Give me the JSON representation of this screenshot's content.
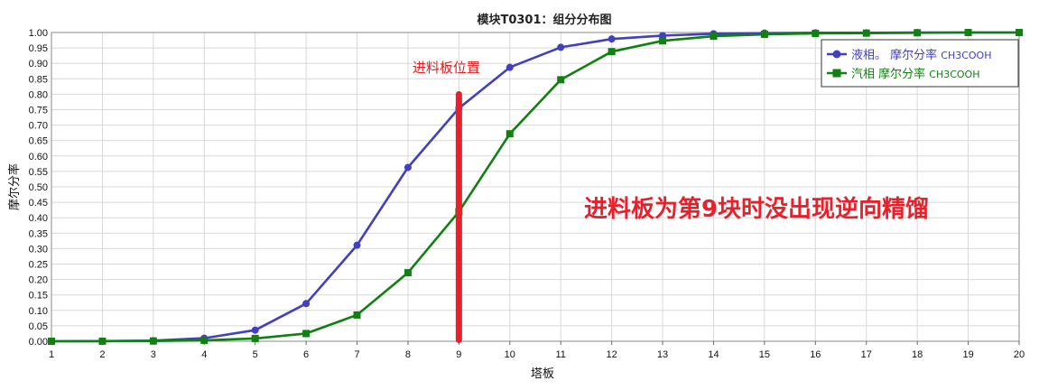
{
  "chart_data": {
    "type": "line",
    "title": "模块T0301：组分分布图",
    "xlabel": "塔板",
    "ylabel": "摩尔分率",
    "x": [
      1,
      2,
      3,
      4,
      5,
      6,
      7,
      8,
      9,
      10,
      11,
      12,
      13,
      14,
      15,
      16,
      17,
      18,
      19,
      20
    ],
    "xlim": [
      1,
      20
    ],
    "ylim": [
      0,
      1
    ],
    "y_ticks": [
      "0.00",
      "0.05",
      "0.10",
      "0.15",
      "0.20",
      "0.25",
      "0.30",
      "0.35",
      "0.40",
      "0.45",
      "0.50",
      "0.55",
      "0.60",
      "0.65",
      "0.70",
      "0.75",
      "0.80",
      "0.85",
      "0.90",
      "0.95",
      "1.00"
    ],
    "grid": true,
    "legend_position": "top-right",
    "series": [
      {
        "name": "液相。 摩尔分率",
        "component": "CH3COOH",
        "color": "#4040c0",
        "marker": "circle",
        "values": [
          0.0,
          0.0005,
          0.002,
          0.01,
          0.036,
          0.122,
          0.311,
          0.563,
          0.755,
          0.887,
          0.952,
          0.979,
          0.99,
          0.996,
          0.998,
          0.999,
          0.999,
          1.0,
          1.0,
          1.0
        ]
      },
      {
        "name": "汽相 摩尔分率",
        "component": "CH3COOH",
        "color": "#108010",
        "marker": "square",
        "values": [
          0.0,
          0.0002,
          0.0008,
          0.003,
          0.009,
          0.025,
          0.085,
          0.222,
          0.42,
          0.672,
          0.847,
          0.938,
          0.973,
          0.988,
          0.994,
          0.997,
          0.998,
          0.999,
          1.0,
          1.0
        ]
      }
    ],
    "annotations": {
      "feed_stage": 9,
      "feed_label": "进料板位置",
      "feed_line_top": 0.81,
      "feed_line_color": "#e8202a",
      "note": "进料板为第9块时没出现逆向精馏"
    }
  }
}
